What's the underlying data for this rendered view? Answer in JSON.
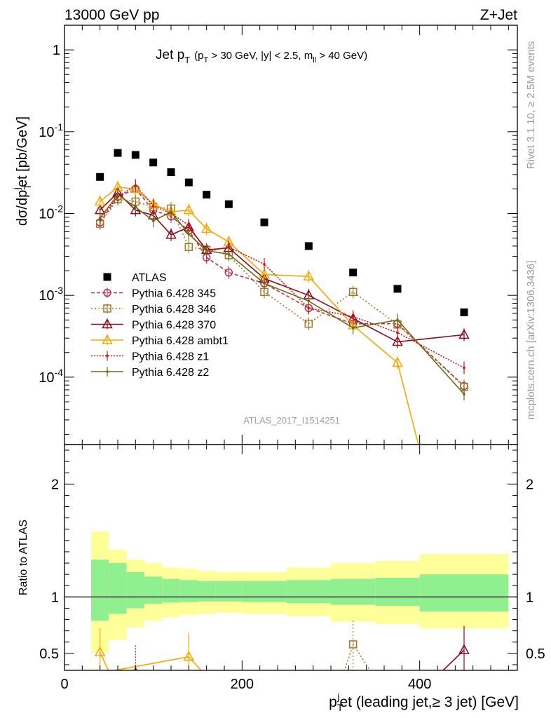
{
  "header": {
    "left": "13000 GeV pp",
    "right": "Z+Jet"
  },
  "plot_title": {
    "main": "Jet p",
    "main_sub": "T",
    "cuts": "(p",
    "cuts_sub1": "T",
    "cuts_mid": " > 30 GeV, |y| < 2.5, m",
    "cuts_sub2": "ll",
    "cuts_end": " > 40 GeV)"
  },
  "side_text": {
    "rivet": "Rivet 3.1.10, ≥ 2.5M events",
    "mcplots": "mcplots.cern.ch [arXiv:1306.3436]"
  },
  "watermark": "ATLAS_2017_I1514251",
  "colors": {
    "atlas": "#000000",
    "p345": "#c0304a",
    "p346": "#a0782a",
    "p370": "#8b0a1e",
    "ambt1": "#f5a800",
    "z1": "#d21414",
    "z2": "#6e6e14",
    "band_inner": "#90f090",
    "band_outer": "#ffff99"
  },
  "chart_data": [
    {
      "type": "line",
      "title": "",
      "ylabel": "dσ/dp^j_T et [pb/GeV]",
      "yscale": "log",
      "ylim": [
        1.5e-05,
        2
      ],
      "xlim": [
        0,
        510
      ],
      "x": [
        40,
        60,
        80,
        100,
        120,
        140,
        160,
        185,
        225,
        275,
        325,
        375,
        450
      ],
      "y_tick_labels": [
        "10^-4",
        "10^-3",
        "10^-2",
        "10^-1",
        "1"
      ],
      "series": [
        {
          "name": "ATLAS",
          "key": "atlas",
          "values": [
            0.028,
            0.055,
            0.052,
            0.042,
            0.032,
            0.024,
            0.017,
            0.013,
            0.0078,
            0.004,
            0.0019,
            0.0012,
            0.00062
          ]
        },
        {
          "name": "Pythia 6.428 345",
          "key": "p345",
          "values": [
            0.0078,
            0.016,
            0.02,
            0.011,
            0.0092,
            0.0062,
            0.0029,
            0.0019,
            0.0014,
            0.0007,
            0.00045,
            0.00045,
            7.8e-05
          ]
        },
        {
          "name": "Pythia 6.428 346",
          "key": "p346",
          "values": [
            0.0075,
            0.015,
            0.014,
            0.012,
            0.0115,
            0.0039,
            0.0036,
            0.0031,
            0.0011,
            0.00045,
            0.0011,
            0.00044,
            7.6e-05
          ]
        },
        {
          "name": "Pythia 6.428 370",
          "key": "p370",
          "values": [
            0.011,
            0.018,
            0.011,
            0.0095,
            0.0055,
            0.0068,
            0.0036,
            0.0038,
            0.0016,
            0.001,
            0.00052,
            0.00027,
            0.00033
          ]
        },
        {
          "name": "Pythia 6.428 ambt1",
          "key": "ambt1",
          "values": [
            0.014,
            0.021,
            0.02,
            0.013,
            0.0105,
            0.011,
            0.0065,
            0.0045,
            0.0018,
            0.0017,
            0.00043,
            0.00015,
            1e-07
          ]
        },
        {
          "name": "Pythia 6.428 z1",
          "key": "z1",
          "values": [
            0.0085,
            0.016,
            0.022,
            0.0125,
            0.01,
            0.0072,
            0.0034,
            0.0039,
            0.0024,
            0.0007,
            0.00055,
            0.00035,
            0.00013
          ]
        },
        {
          "name": "Pythia 6.428 z2",
          "key": "z2",
          "values": [
            0.0088,
            0.017,
            0.012,
            0.0081,
            0.0105,
            0.0056,
            0.0035,
            0.0032,
            0.0014,
            0.00085,
            0.0004,
            0.0005,
            6.2e-05
          ]
        }
      ]
    },
    {
      "type": "line",
      "title": "",
      "ylabel": "Ratio to ATLAS",
      "xlabel": "p^j_T et (leading jet,≥ 3 jet) [GeV]",
      "ylim": [
        0.35,
        2.35
      ],
      "xlim": [
        0,
        510
      ],
      "x_tick_labels": [
        "0",
        "200",
        "400"
      ],
      "y_tick_labels": [
        "0.5",
        "1",
        "2"
      ],
      "band_edges": [
        30,
        50,
        70,
        90,
        110,
        130,
        150,
        170,
        200,
        250,
        300,
        350,
        400,
        500
      ],
      "band_inner": [
        [
          0.79,
          1.33
        ],
        [
          0.85,
          1.3
        ],
        [
          0.9,
          1.22
        ],
        [
          0.94,
          1.18
        ],
        [
          0.95,
          1.16
        ],
        [
          0.955,
          1.15
        ],
        [
          0.96,
          1.14
        ],
        [
          0.96,
          1.14
        ],
        [
          0.955,
          1.14
        ],
        [
          0.945,
          1.15
        ],
        [
          0.93,
          1.16
        ],
        [
          0.92,
          1.17
        ],
        [
          0.87,
          1.2
        ],
        [
          0.87,
          1.2
        ]
      ],
      "band_outer": [
        [
          0.51,
          1.58
        ],
        [
          0.62,
          1.42
        ],
        [
          0.73,
          1.33
        ],
        [
          0.79,
          1.3
        ],
        [
          0.82,
          1.26
        ],
        [
          0.84,
          1.25
        ],
        [
          0.85,
          1.23
        ],
        [
          0.86,
          1.22
        ],
        [
          0.85,
          1.22
        ],
        [
          0.83,
          1.26
        ],
        [
          0.78,
          1.3
        ],
        [
          0.76,
          1.32
        ],
        [
          0.72,
          1.38
        ],
        [
          0.72,
          1.38
        ]
      ],
      "series": [
        {
          "name": "Pythia 6.428 370",
          "key": "p370",
          "x": [
            40,
            425,
            450
          ],
          "values": [
            0.34,
            0.34,
            0.53
          ]
        },
        {
          "name": "Pythia 6.428 ambt1",
          "key": "ambt1",
          "x": [
            40,
            50,
            140,
            155,
            275
          ],
          "values": [
            0.51,
            0.34,
            0.47,
            0.34,
            0.35
          ]
        },
        {
          "name": "Pythia 6.428 346",
          "key": "p346",
          "x": [
            315,
            325,
            345
          ],
          "values": [
            0.34,
            0.58,
            0.34
          ]
        },
        {
          "name": "Pythia 6.428 z2",
          "key": "z2",
          "x": [
            375
          ],
          "values": [
            0.35
          ]
        },
        {
          "name": "Pythia 6.428 z1",
          "key": "z1",
          "x": [
            80
          ],
          "values": [
            0.36
          ]
        }
      ]
    }
  ]
}
